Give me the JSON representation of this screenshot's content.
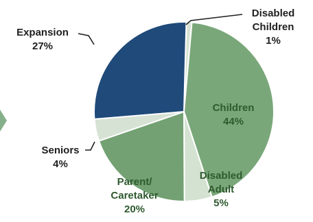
{
  "chart_data": {
    "type": "pie",
    "slices": [
      {
        "label_lines": [
          "Disabled",
          "Children"
        ],
        "value_label": "1%",
        "value": 1,
        "color": "#d8e3d4"
      },
      {
        "label_lines": [
          "Children"
        ],
        "value_label": "44%",
        "value": 44,
        "color": "#7aa77a"
      },
      {
        "label_lines": [
          "Disabled",
          "Adult"
        ],
        "value_label": "5%",
        "value": 5,
        "color": "#d4e2d2"
      },
      {
        "label_lines": [
          "Parent/",
          "Caretaker"
        ],
        "value_label": "20%",
        "value": 20,
        "color": "#73a173"
      },
      {
        "label_lines": [
          "Seniors"
        ],
        "value_label": "4%",
        "value": 4,
        "color": "#d6e2d4"
      },
      {
        "label_lines": [
          "Expansion"
        ],
        "value_label": "27%",
        "value": 27,
        "color": "#1f4a7a"
      }
    ],
    "legend": "none",
    "colors": {
      "inside_label": "#2f5a2f",
      "outside_label": "#1f1f1f",
      "leader_line": "#1f1f1f",
      "slice_border": "#ffffff",
      "left_edge_fragment": "#86b08a"
    }
  }
}
